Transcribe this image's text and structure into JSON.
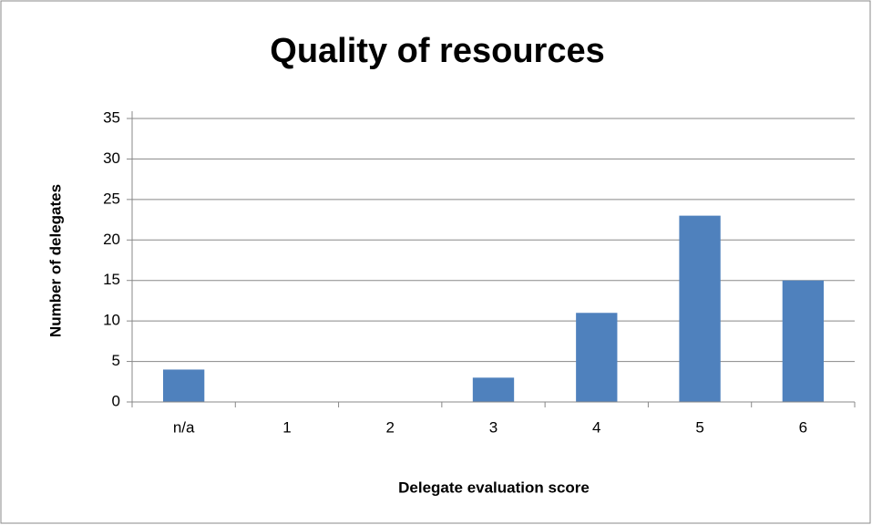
{
  "chart_data": {
    "type": "bar",
    "title": "Quality of resources",
    "x_label": "Delegate evaluation score",
    "y_label": "Number of delegates",
    "categories": [
      "n/a",
      "1",
      "2",
      "3",
      "4",
      "5",
      "6"
    ],
    "values": [
      4,
      0,
      0,
      3,
      11,
      23,
      15
    ],
    "color": "#4f81bd",
    "ylim": [
      0,
      35
    ],
    "yticks": [
      0,
      5,
      10,
      15,
      20,
      25,
      30,
      35
    ],
    "grid": true
  }
}
